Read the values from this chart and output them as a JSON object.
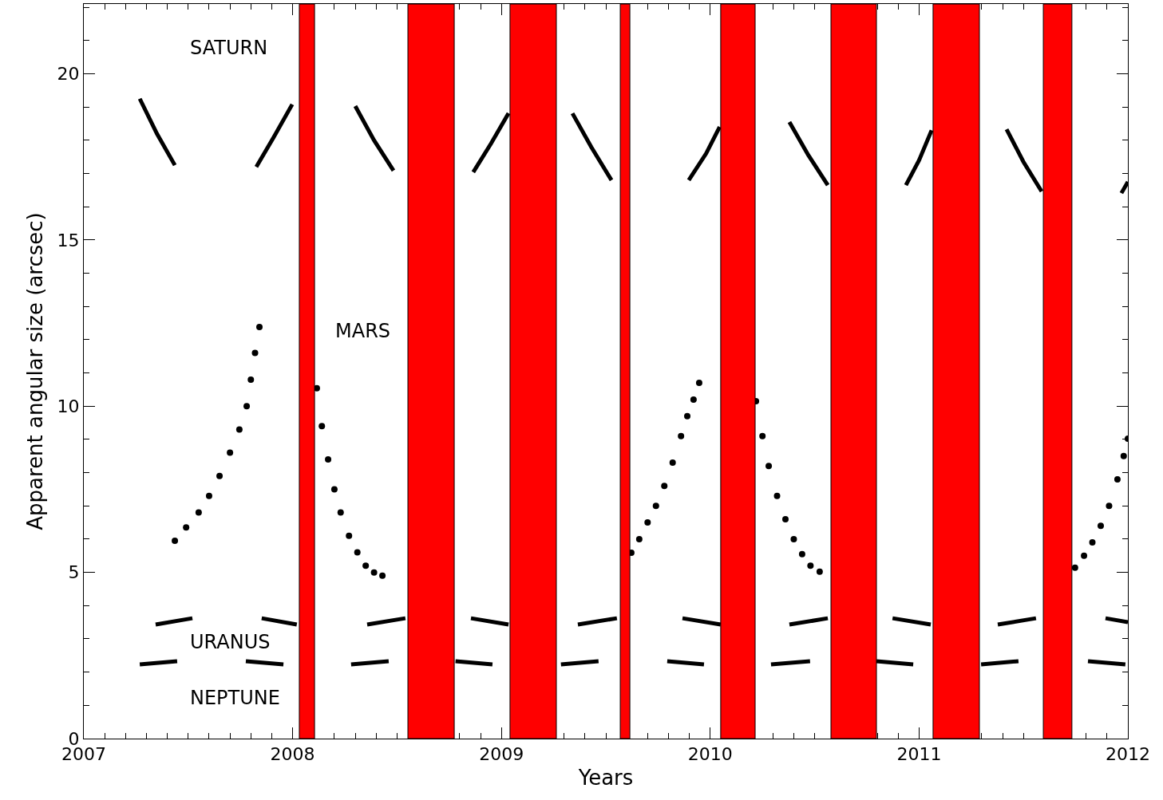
{
  "chart_data": {
    "type": "line",
    "xlabel": "Years",
    "ylabel": "Apparent angular size (arcsec)",
    "xlim": [
      2007,
      2012
    ],
    "xticks": [
      2007,
      2008,
      2009,
      2010,
      2011,
      2012
    ],
    "ylim": [
      0,
      22.1
    ],
    "yticks": [
      0,
      5,
      10,
      15,
      20
    ],
    "series": [
      {
        "color": "#000000",
        "marker": "none",
        "x": [
          2007.268,
          2007.35,
          2007.436,
          null,
          2007.826,
          2007.91,
          2007.998,
          null,
          2008.3,
          2008.39,
          2008.483,
          null,
          2008.865,
          2008.95,
          2009.034,
          null,
          2009.34,
          2009.43,
          2009.527,
          null,
          2009.897,
          2009.98,
          2010.045,
          null,
          2010.379,
          2010.47,
          2010.563,
          null,
          2010.937,
          2011.0,
          2011.06,
          null,
          2011.419,
          2011.5,
          2011.587,
          null,
          2011.969,
          2012.0
        ],
        "values": [
          19.25,
          18.2,
          17.25,
          null,
          17.2,
          18.1,
          19.08,
          null,
          19.03,
          18.0,
          17.09,
          null,
          17.04,
          17.9,
          18.81,
          null,
          18.81,
          17.8,
          16.8,
          null,
          16.8,
          17.6,
          18.4,
          null,
          18.55,
          17.55,
          16.65,
          null,
          16.65,
          17.4,
          18.3,
          null,
          18.33,
          17.35,
          16.46,
          null,
          16.41,
          16.75
        ]
      },
      {
        "type": "scatter",
        "color": "#000000",
        "marker": "circle",
        "x": [
          2007.436,
          2007.49,
          2007.55,
          2007.6,
          2007.65,
          2007.7,
          2007.745,
          2007.78,
          2007.8,
          2007.82,
          2007.841,
          2008.116,
          2008.14,
          2008.17,
          2008.2,
          2008.23,
          2008.27,
          2008.31,
          2008.35,
          2008.39,
          2008.43,
          2009.622,
          2009.66,
          2009.7,
          2009.74,
          2009.78,
          2009.82,
          2009.86,
          2009.89,
          2009.92,
          2009.947,
          2010.219,
          2010.25,
          2010.28,
          2010.32,
          2010.36,
          2010.4,
          2010.44,
          2010.48,
          2010.524,
          2011.747,
          2011.79,
          2011.83,
          2011.87,
          2011.91,
          2011.95,
          2011.98,
          2012.0
        ],
        "values": [
          5.95,
          6.35,
          6.8,
          7.3,
          7.9,
          8.6,
          9.3,
          10.0,
          10.8,
          11.6,
          12.38,
          10.54,
          9.4,
          8.4,
          7.5,
          6.8,
          6.1,
          5.6,
          5.2,
          5.0,
          4.9,
          5.59,
          6.0,
          6.5,
          7.0,
          7.6,
          8.3,
          9.1,
          9.7,
          10.2,
          10.7,
          10.15,
          9.1,
          8.2,
          7.3,
          6.6,
          6.0,
          5.55,
          5.2,
          5.02,
          5.14,
          5.5,
          5.9,
          6.4,
          7.0,
          7.8,
          8.5,
          9.02
        ]
      },
      {
        "color": "#000000",
        "marker": "none",
        "x": [
          2007.344,
          2007.52,
          null,
          2007.852,
          2008.02,
          null,
          2008.357,
          2008.54,
          null,
          2008.854,
          2009.034,
          null,
          2009.366,
          2009.553,
          null,
          2009.867,
          2010.05,
          null,
          2010.379,
          2010.563,
          null,
          2010.873,
          2011.056,
          null,
          2011.377,
          2011.56,
          null,
          2011.893,
          2012.0
        ],
        "values": [
          3.43,
          3.62,
          null,
          3.62,
          3.43,
          null,
          3.43,
          3.62,
          null,
          3.62,
          3.43,
          null,
          3.43,
          3.62,
          null,
          3.62,
          3.43,
          null,
          3.43,
          3.62,
          null,
          3.62,
          3.43,
          null,
          3.43,
          3.62,
          null,
          3.62,
          3.5
        ]
      },
      {
        "color": "#000000",
        "marker": "none",
        "x": [
          2007.268,
          2007.447,
          null,
          2007.776,
          2007.956,
          null,
          2008.28,
          2008.46,
          null,
          2008.78,
          2008.957,
          null,
          2009.285,
          2009.465,
          null,
          2009.794,
          2009.97,
          null,
          2010.291,
          2010.478,
          null,
          2010.796,
          2010.972,
          null,
          2011.297,
          2011.476,
          null,
          2011.809,
          2011.988
        ],
        "values": [
          2.23,
          2.33,
          null,
          2.33,
          2.23,
          null,
          2.23,
          2.33,
          null,
          2.33,
          2.23,
          null,
          2.23,
          2.33,
          null,
          2.33,
          2.23,
          null,
          2.23,
          2.33,
          null,
          2.33,
          2.23,
          null,
          2.23,
          2.33,
          null,
          2.33,
          2.23
        ]
      }
    ],
    "bands": [
      {
        "axis": "x",
        "from": 2008.032,
        "to": 2008.105,
        "color": "#ff0000"
      },
      {
        "axis": "x",
        "from": 2008.552,
        "to": 2008.774,
        "color": "#ff0000"
      },
      {
        "axis": "x",
        "from": 2009.041,
        "to": 2009.263,
        "color": "#ff0000"
      },
      {
        "axis": "x",
        "from": 2009.569,
        "to": 2009.615,
        "color": "#ff0000"
      },
      {
        "axis": "x",
        "from": 2010.05,
        "to": 2010.215,
        "color": "#ff0000"
      },
      {
        "axis": "x",
        "from": 2010.578,
        "to": 2010.796,
        "color": "#ff0000"
      },
      {
        "axis": "x",
        "from": 2011.067,
        "to": 2011.289,
        "color": "#ff0000"
      },
      {
        "axis": "x",
        "from": 2011.595,
        "to": 2011.732,
        "color": "#ff0000"
      }
    ],
    "annotations": [
      "SATURN",
      "MARS",
      "URANUS",
      "NEPTUNE"
    ]
  }
}
